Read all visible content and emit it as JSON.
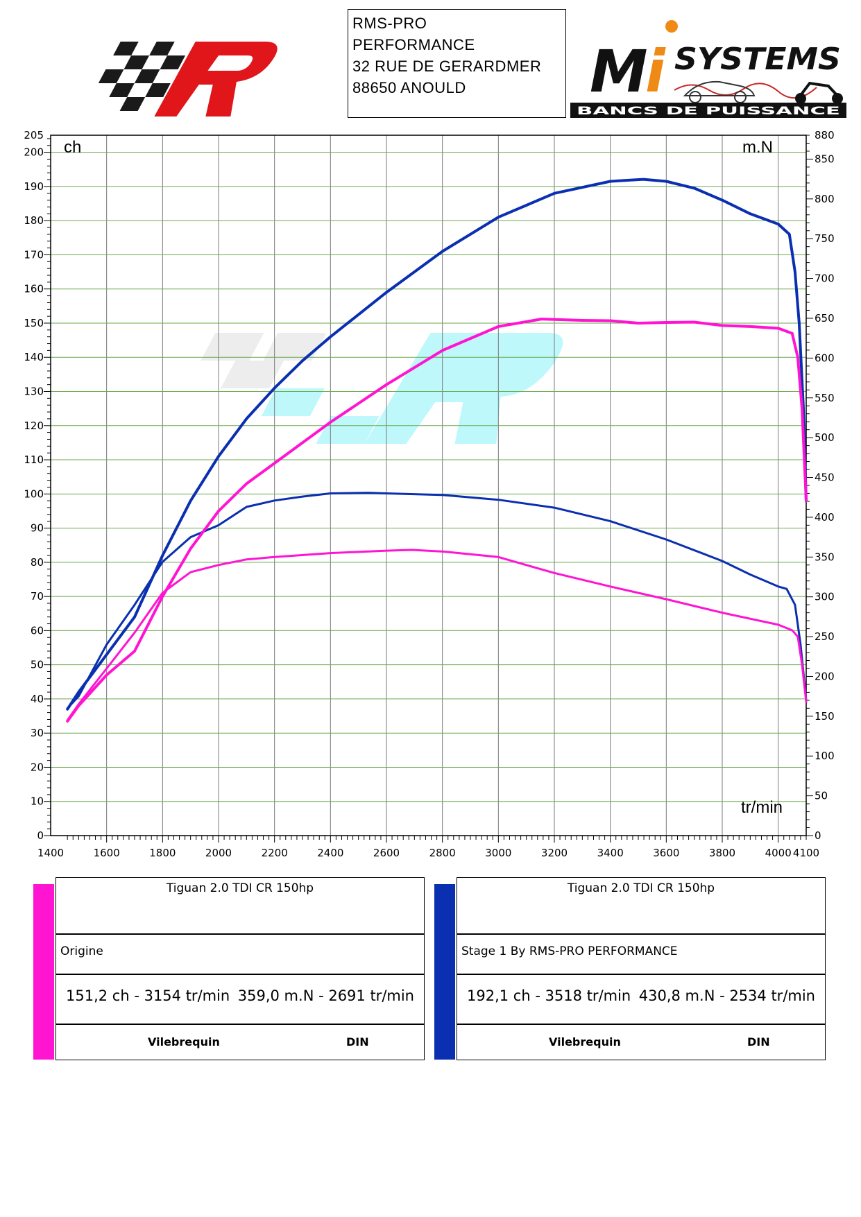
{
  "header": {
    "address_lines": [
      "RMS-PRO",
      "PERFORMANCE",
      "32 RUE DE GERARDMER",
      "88650 ANOULD"
    ],
    "right_logo_text": "SYSTEMS",
    "right_logo_subtext": "BANCS DE PUISSANCE"
  },
  "colors": {
    "origine": "#ff14d2",
    "stage1": "#0a2fb0",
    "grid": "#6aa84f",
    "logo_red": "#e0161b",
    "logo_black": "#1a1a1a"
  },
  "chart_data": {
    "type": "line",
    "left_unit": "ch",
    "right_unit": "m.N",
    "x_unit": "tr/min",
    "xlim": [
      1400,
      4100
    ],
    "ylim_left": [
      0,
      205
    ],
    "ylim_right": [
      0,
      880
    ],
    "x_ticks": [
      "1400",
      "1600",
      "1800",
      "2000",
      "2200",
      "2400",
      "2600",
      "2800",
      "3000",
      "3200",
      "3400",
      "3600",
      "3800",
      "4000",
      "4100"
    ],
    "y_left_ticks": [
      "0",
      "10",
      "20",
      "30",
      "40",
      "50",
      "60",
      "70",
      "80",
      "90",
      "100",
      "110",
      "120",
      "130",
      "140",
      "150",
      "160",
      "170",
      "180",
      "190",
      "200",
      "205"
    ],
    "y_right_ticks": [
      "0",
      "50",
      "100",
      "150",
      "200",
      "250",
      "300",
      "350",
      "400",
      "450",
      "500",
      "550",
      "600",
      "650",
      "700",
      "750",
      "800",
      "850",
      "880"
    ],
    "grid": true,
    "series": [
      {
        "name": "Stage 1 By RMS-PRO PERFORMANCE",
        "kind": "torque",
        "axis": "right",
        "color": "#0a2fb0",
        "points": [
          [
            1460,
            160
          ],
          [
            1500,
            175
          ],
          [
            1600,
            240
          ],
          [
            1700,
            290
          ],
          [
            1800,
            344
          ],
          [
            1900,
            375
          ],
          [
            2000,
            390
          ],
          [
            2100,
            413
          ],
          [
            2200,
            421
          ],
          [
            2300,
            426
          ],
          [
            2400,
            430
          ],
          [
            2534,
            430.8
          ],
          [
            2600,
            430
          ],
          [
            2800,
            428
          ],
          [
            3000,
            422
          ],
          [
            3200,
            412
          ],
          [
            3400,
            395
          ],
          [
            3600,
            372
          ],
          [
            3800,
            345
          ],
          [
            3900,
            328
          ],
          [
            4000,
            313
          ],
          [
            4030,
            310
          ],
          [
            4060,
            290
          ],
          [
            4080,
            240
          ],
          [
            4100,
            170
          ]
        ]
      },
      {
        "name": "Stage 1 By RMS-PRO PERFORMANCE",
        "kind": "power",
        "axis": "left",
        "color": "#0a2fb0",
        "points": [
          [
            1460,
            37
          ],
          [
            1500,
            42
          ],
          [
            1600,
            53
          ],
          [
            1700,
            64
          ],
          [
            1800,
            82
          ],
          [
            1900,
            98
          ],
          [
            2000,
            111
          ],
          [
            2100,
            122
          ],
          [
            2200,
            131
          ],
          [
            2300,
            139
          ],
          [
            2400,
            146
          ],
          [
            2600,
            159
          ],
          [
            2800,
            171
          ],
          [
            3000,
            181
          ],
          [
            3200,
            188
          ],
          [
            3400,
            191.5
          ],
          [
            3518,
            192.1
          ],
          [
            3600,
            191.5
          ],
          [
            3700,
            189.5
          ],
          [
            3800,
            186
          ],
          [
            3900,
            182
          ],
          [
            4000,
            179
          ],
          [
            4040,
            176
          ],
          [
            4060,
            165
          ],
          [
            4075,
            150
          ],
          [
            4090,
            125
          ],
          [
            4100,
            98
          ]
        ]
      },
      {
        "name": "Origine",
        "kind": "torque",
        "axis": "right",
        "color": "#ff14d2",
        "points": [
          [
            1460,
            145
          ],
          [
            1500,
            165
          ],
          [
            1600,
            210
          ],
          [
            1700,
            255
          ],
          [
            1800,
            305
          ],
          [
            1900,
            331
          ],
          [
            2000,
            340
          ],
          [
            2100,
            347
          ],
          [
            2200,
            350
          ],
          [
            2400,
            355
          ],
          [
            2600,
            358
          ],
          [
            2691,
            359
          ],
          [
            2800,
            357
          ],
          [
            3000,
            350
          ],
          [
            3200,
            330
          ],
          [
            3400,
            313
          ],
          [
            3600,
            297
          ],
          [
            3800,
            280
          ],
          [
            4000,
            265
          ],
          [
            4050,
            258
          ],
          [
            4070,
            250
          ],
          [
            4085,
            215
          ],
          [
            4100,
            168
          ]
        ]
      },
      {
        "name": "Origine",
        "kind": "power",
        "axis": "left",
        "color": "#ff14d2",
        "points": [
          [
            1460,
            33.5
          ],
          [
            1500,
            38
          ],
          [
            1600,
            47
          ],
          [
            1700,
            54
          ],
          [
            1800,
            70
          ],
          [
            1900,
            84
          ],
          [
            2000,
            95
          ],
          [
            2100,
            103
          ],
          [
            2200,
            109
          ],
          [
            2300,
            115
          ],
          [
            2400,
            121
          ],
          [
            2600,
            132
          ],
          [
            2800,
            142
          ],
          [
            3000,
            149
          ],
          [
            3154,
            151.2
          ],
          [
            3300,
            150.8
          ],
          [
            3400,
            150.7
          ],
          [
            3500,
            150
          ],
          [
            3600,
            150.2
          ],
          [
            3700,
            150.3
          ],
          [
            3800,
            149.3
          ],
          [
            3900,
            149
          ],
          [
            4000,
            148.5
          ],
          [
            4050,
            147
          ],
          [
            4070,
            140
          ],
          [
            4085,
            125
          ],
          [
            4100,
            98
          ]
        ]
      }
    ]
  },
  "legend": {
    "origine": {
      "vehicle": "Tiguan 2.0 TDI CR 150hp",
      "name": "Origine",
      "power": "151,2 ch - 3154 tr/min",
      "torque": "359,0 m.N - 2691 tr/min",
      "col1": "Vilebrequin",
      "col2": "DIN"
    },
    "stage1": {
      "vehicle": "Tiguan 2.0 TDI CR 150hp",
      "name": "Stage 1 By RMS-PRO PERFORMANCE",
      "power": "192,1 ch - 3518 tr/min",
      "torque": "430,8 m.N - 2534 tr/min",
      "col1": "Vilebrequin",
      "col2": "DIN"
    }
  }
}
